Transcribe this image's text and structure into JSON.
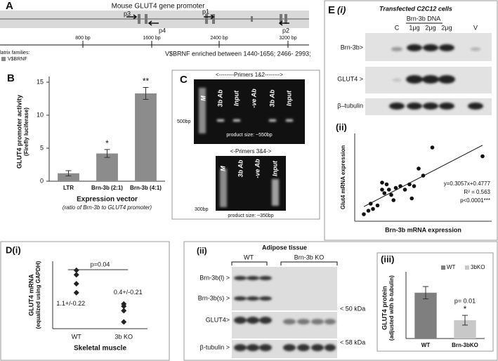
{
  "panel_a": {
    "label": "A",
    "title": "Mouse GLUT4 gene promoter",
    "primers": [
      "p3",
      "p4",
      "p1",
      "p2"
    ],
    "ruler": [
      "800 bp",
      "1600 bp",
      "2400 bp",
      "3200 bp"
    ],
    "legend_heading": "latrix families:",
    "legend_item": "V$BRNF",
    "note": "V$BRNF enriched between 1440-1656; 2466- 2993;"
  },
  "panel_c": {
    "label": "C",
    "gel1": {
      "header": "<--------Primers 1&2-------->",
      "lanes": [
        "M",
        "3b Ab",
        "Input",
        "-ve Ab",
        "3b Ab",
        "Input"
      ],
      "marker": "500bp",
      "product": "product size: ~550bp"
    },
    "gel2": {
      "header": "<-Primers 3&4->",
      "lanes": [
        "M",
        "3b Ab",
        "-ve Ab",
        "Input"
      ],
      "marker": "300bp",
      "product": "product size: ~350bp"
    }
  },
  "panel_e": {
    "label": "E",
    "sublabel": "(i)",
    "title": "Transfected C2C12 cells",
    "dna": "Brn-3b DNA",
    "lanes": [
      "C",
      "1μg",
      "2μg",
      "2μg",
      "V"
    ],
    "rows": [
      "Brn-3b>",
      "GLUT4 >",
      "β–tubulin"
    ]
  },
  "panel_d2": {
    "label": "(ii)",
    "title": "Adipose tissue",
    "groups": [
      "WT",
      "Brn-3b KO"
    ],
    "rows": [
      "Brn-3b(l) >",
      "Brn-3b(s) >",
      "GLUT4>",
      "β-tubulin >"
    ],
    "sizes": [
      "< 50 kDa",
      "< 58 kDa"
    ]
  },
  "chart_data": [
    {
      "type": "bar",
      "label": "B",
      "y_label": "GLUT4 promoter activity",
      "y_label_2": "(Firefly luciferase)",
      "x_label": "Expression vector",
      "x_sublabel": "(ratio of Brn-3b to GLUT4 promoter)",
      "categories": [
        "LTR",
        "Brn-3b (2:1)",
        "Brn-3b (4:1)"
      ],
      "values": [
        1.2,
        4.2,
        13.3
      ],
      "errors": [
        0.4,
        0.6,
        0.9
      ],
      "annotations": [
        null,
        "*",
        "**"
      ],
      "color": "#8c8c8c",
      "ylim": [
        0,
        15
      ],
      "yticks": [
        0,
        5,
        10,
        15
      ]
    },
    {
      "type": "scatter",
      "label": "(ii)",
      "x_label": "Brn-3b mRNA expression",
      "y_label": "Glut4 mRNA expression",
      "x": [
        0.4,
        0.6,
        0.7,
        0.8,
        1.0,
        1.2,
        1.2,
        1.3,
        1.4,
        1.5,
        1.6,
        1.7,
        1.8,
        2.0,
        2.2,
        2.4,
        2.5,
        2.6,
        2.8,
        3.0,
        3.4,
        5.6
      ],
      "values": [
        0.2,
        0.3,
        0.5,
        0.35,
        0.45,
        0.9,
        1.1,
        0.8,
        1.05,
        0.9,
        0.75,
        0.6,
        0.95,
        1.0,
        0.9,
        1.05,
        0.65,
        1.0,
        1.5,
        1.3,
        2.1,
        1.85
      ],
      "color": "#111111",
      "xlim": [
        0,
        6
      ],
      "ylim": [
        0,
        2.5
      ],
      "trendline": true,
      "equation": "y=0.3057x+0.4777",
      "r_squared": "R² = 0.563",
      "p_value": "p<0.0001***"
    },
    {
      "type": "strip",
      "label": "D(i)",
      "y_label": "GLUT4 mRNA",
      "y_label_2": "(equalized using GAPDH)",
      "x_label": "Skeletal muscle",
      "categories": [
        "WT",
        "3b KO"
      ],
      "values": [
        [
          1.3,
          1.2,
          1.0,
          0.8
        ],
        [
          0.55,
          0.5,
          0.4,
          0.15
        ]
      ],
      "group_labels": [
        "1.1+/-0.22",
        "0.4+/-0.21"
      ],
      "p_value": "p=0.04",
      "color": "#222222",
      "ylim": [
        0,
        1.5
      ]
    },
    {
      "type": "bar",
      "label": "(iii)",
      "y_label": "GLUT4 protein",
      "y_label_2": "(adjusted with b-tubulin)",
      "categories": [
        "WT",
        "Brn-3bKO"
      ],
      "values": [
        0.75,
        0.3
      ],
      "errors": [
        0.1,
        0.08
      ],
      "colors": [
        "#7f7f7f",
        "#c8c8c8"
      ],
      "legend": [
        "WT",
        "3bKO"
      ],
      "annotations": [
        null,
        "*"
      ],
      "p_value": "p= 0.01",
      "ylim": [
        0,
        1
      ]
    }
  ]
}
